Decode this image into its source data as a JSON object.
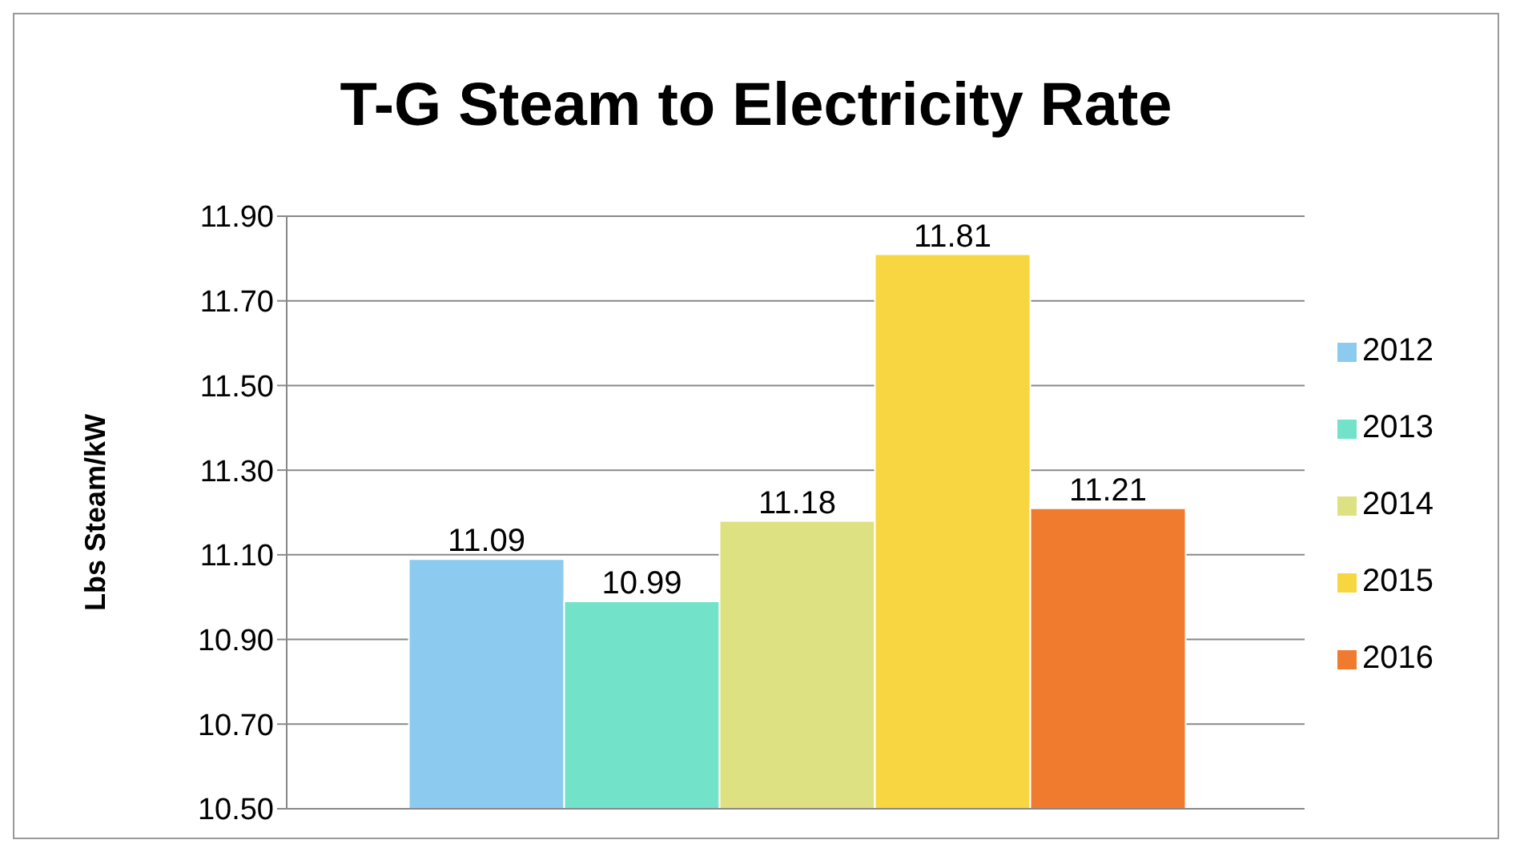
{
  "chart_data": {
    "type": "bar",
    "title": "T-G Steam to Electricity Rate",
    "ylabel": "Lbs Steam/kW",
    "categories": [
      null
    ],
    "series": [
      {
        "name": "2012",
        "color": "#8ccbef",
        "values": [
          11.09
        ]
      },
      {
        "name": "2013",
        "color": "#72e3c9",
        "values": [
          10.99
        ]
      },
      {
        "name": "2014",
        "color": "#dde181",
        "values": [
          11.18
        ]
      },
      {
        "name": "2015",
        "color": "#f7d641",
        "values": [
          11.81
        ]
      },
      {
        "name": "2016",
        "color": "#f07b2f",
        "values": [
          11.21
        ]
      }
    ],
    "ylim": [
      10.5,
      11.9
    ],
    "yticks": [
      {
        "value": 10.5,
        "label": "10.50"
      },
      {
        "value": 10.7,
        "label": "10.70"
      },
      {
        "value": 10.9,
        "label": "10.90"
      },
      {
        "value": 11.1,
        "label": "11.10"
      },
      {
        "value": 11.3,
        "label": "11.30"
      },
      {
        "value": 11.5,
        "label": "11.50"
      },
      {
        "value": 11.7,
        "label": "11.70"
      },
      {
        "value": 11.9,
        "label": "11.90"
      }
    ],
    "grid": "y",
    "legend": "right",
    "data_labels": true
  }
}
